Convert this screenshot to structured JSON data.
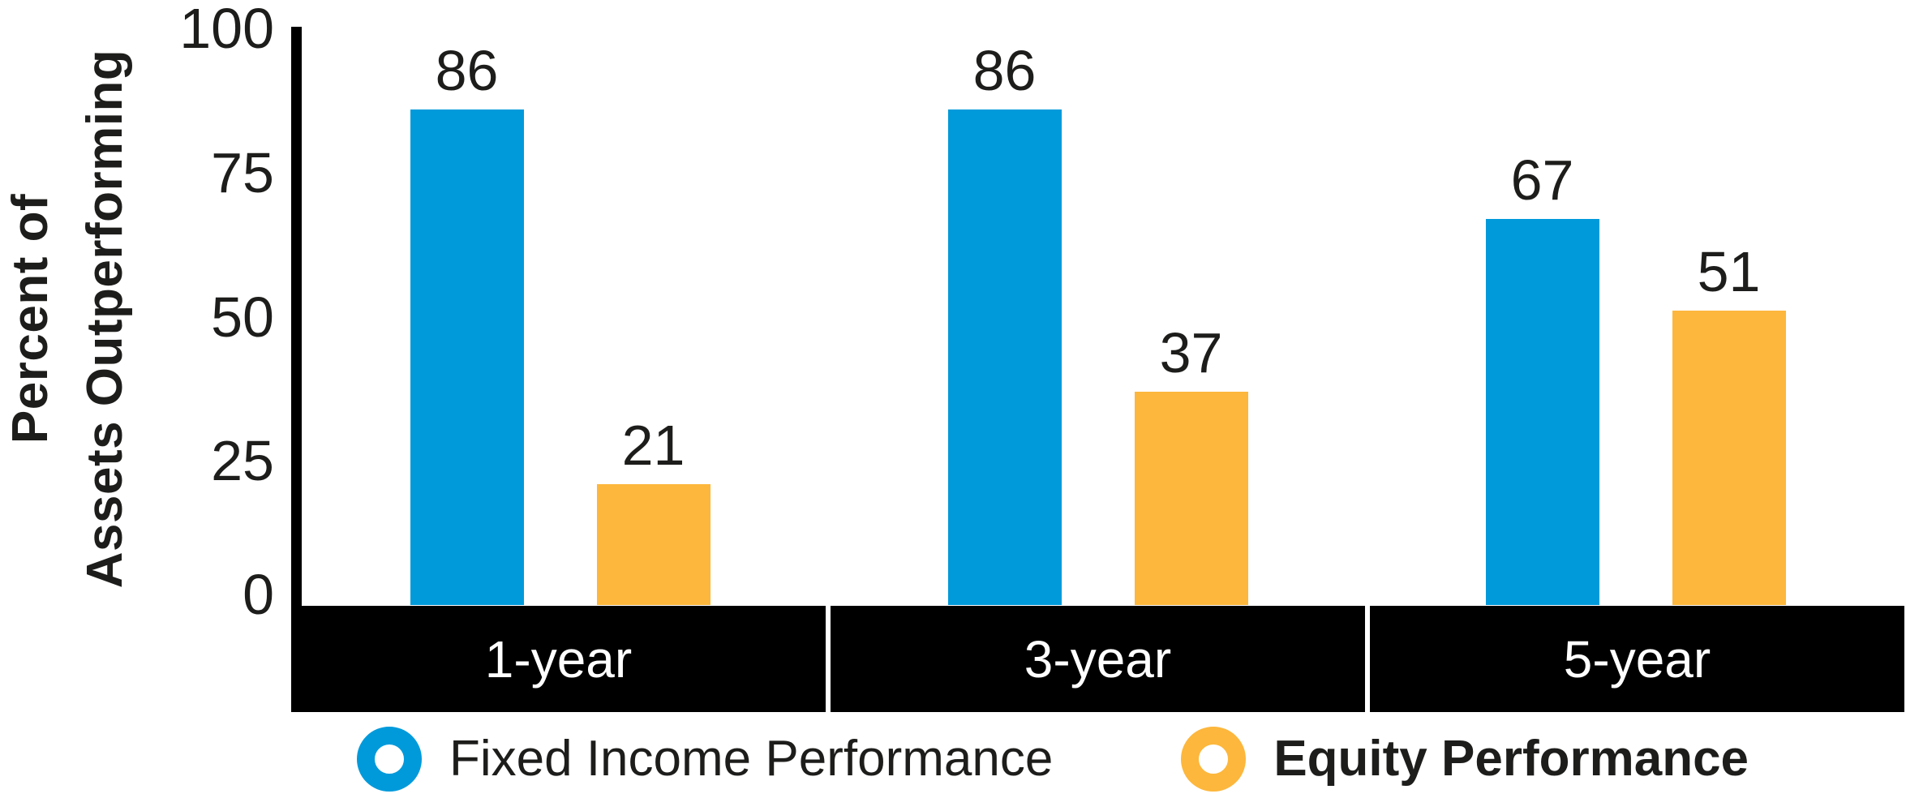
{
  "chart_data": {
    "type": "bar",
    "title": "",
    "ylabel": "Percent of\nAssets Outperforming",
    "xlabel": "",
    "categories": [
      "1-year",
      "3-year",
      "5-year"
    ],
    "series": [
      {
        "name": "Fixed Income Performance",
        "color": "#009ADB",
        "values": [
          86,
          86,
          67
        ]
      },
      {
        "name": "Equity Performance",
        "color": "#FDB73C",
        "values": [
          21,
          37,
          51
        ]
      }
    ],
    "yticks": [
      100,
      75,
      50,
      25,
      0
    ],
    "ylim": [
      0,
      100
    ],
    "grid": false,
    "data_labels_shown": true,
    "legend_position": "bottom"
  },
  "legend": {
    "items": [
      {
        "label": "Fixed Income Performance",
        "color": "#009ADB",
        "bold": false
      },
      {
        "label": "Equity Performance",
        "color": "#FDB73C",
        "bold": true
      }
    ]
  },
  "colors": {
    "fixed_income_blue": "#009ADB",
    "equity_orange": "#FDB73C",
    "axis_black": "#000000",
    "band_label_white": "#FFFFFF"
  }
}
